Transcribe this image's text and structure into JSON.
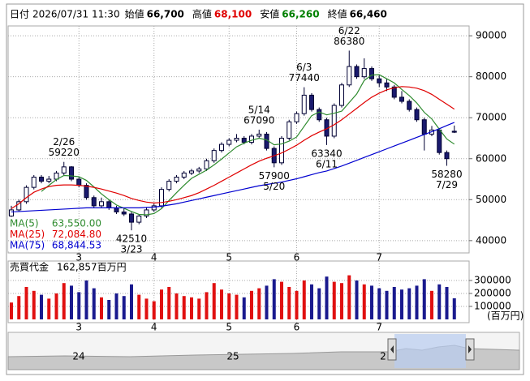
{
  "header": {
    "date_label": "日付",
    "date": "2026/07/31 11:30",
    "fields": [
      {
        "name": "始値",
        "value": 66700,
        "label": "66,700",
        "color": "#000000"
      },
      {
        "name": "高値",
        "value": 68100,
        "label": "68,100",
        "color": "#e00000"
      },
      {
        "name": "安値",
        "value": 66260,
        "label": "66,260",
        "color": "#008000"
      },
      {
        "name": "終値",
        "value": 66460,
        "label": "66,460",
        "color": "#000000"
      }
    ]
  },
  "chart_data": [
    {
      "type": "candlestick",
      "categories": [
        null,
        null,
        null,
        null,
        null,
        null,
        null,
        null,
        null,
        "3",
        null,
        null,
        null,
        null,
        null,
        null,
        null,
        null,
        null,
        "4",
        null,
        null,
        null,
        null,
        null,
        null,
        null,
        null,
        null,
        "5",
        null,
        null,
        null,
        null,
        null,
        null,
        null,
        null,
        "6",
        null,
        null,
        null,
        null,
        null,
        null,
        null,
        null,
        null,
        null,
        "7",
        null,
        null,
        null,
        null,
        null,
        null,
        null,
        null,
        null,
        null
      ],
      "values": [
        [
          46000,
          48500,
          45800,
          47500
        ],
        [
          47500,
          50000,
          47000,
          49500
        ],
        [
          49500,
          53500,
          49000,
          53000
        ],
        [
          53000,
          56000,
          52500,
          55500
        ],
        [
          55500,
          56000,
          54000,
          54500
        ],
        [
          54500,
          55800,
          54000,
          55000
        ],
        [
          55000,
          57000,
          54500,
          56500
        ],
        [
          56500,
          59220,
          56000,
          58000
        ],
        [
          58000,
          58200,
          54500,
          55000
        ],
        [
          55000,
          55500,
          53000,
          53500
        ],
        [
          53500,
          54000,
          50000,
          50500
        ],
        [
          50500,
          51000,
          48000,
          48500
        ],
        [
          48500,
          50500,
          48000,
          49500
        ],
        [
          49500,
          50000,
          47500,
          48000
        ],
        [
          48000,
          48500,
          46500,
          47000
        ],
        [
          47000,
          48000,
          46000,
          46500
        ],
        [
          46500,
          47000,
          42510,
          44500
        ],
        [
          44500,
          46500,
          44000,
          46000
        ],
        [
          46000,
          48000,
          45500,
          47500
        ],
        [
          47500,
          49000,
          47000,
          48500
        ],
        [
          48500,
          53000,
          48000,
          52500
        ],
        [
          52500,
          55000,
          52000,
          54500
        ],
        [
          54500,
          56000,
          54000,
          55500
        ],
        [
          55500,
          57000,
          55000,
          56500
        ],
        [
          56500,
          57500,
          56000,
          57000
        ],
        [
          57000,
          58000,
          56500,
          57500
        ],
        [
          57500,
          60000,
          57000,
          59500
        ],
        [
          59500,
          62500,
          59000,
          62000
        ],
        [
          62000,
          64000,
          61500,
          63500
        ],
        [
          63500,
          65000,
          63000,
          64500
        ],
        [
          64500,
          66000,
          64000,
          65000
        ],
        [
          65000,
          65500,
          63500,
          64000
        ],
        [
          64000,
          66000,
          63500,
          65500
        ],
        [
          65500,
          67090,
          65000,
          66000
        ],
        [
          66000,
          66500,
          62000,
          62500
        ],
        [
          62500,
          63000,
          57900,
          59000
        ],
        [
          59000,
          65500,
          58500,
          65000
        ],
        [
          65000,
          69500,
          64500,
          69000
        ],
        [
          69000,
          71500,
          68500,
          71000
        ],
        [
          71000,
          77440,
          70500,
          75500
        ],
        [
          75500,
          76000,
          71500,
          72000
        ],
        [
          72000,
          72500,
          69000,
          69500
        ],
        [
          69500,
          70000,
          63340,
          65500
        ],
        [
          65500,
          73500,
          65000,
          73000
        ],
        [
          73000,
          78500,
          72500,
          78000
        ],
        [
          78000,
          86380,
          77500,
          82500
        ],
        [
          82500,
          83000,
          79500,
          80000
        ],
        [
          80000,
          84500,
          79500,
          82000
        ],
        [
          82000,
          82500,
          79000,
          79500
        ],
        [
          79500,
          80500,
          77500,
          78500
        ],
        [
          78500,
          79500,
          76500,
          77500
        ],
        [
          77500,
          78000,
          74500,
          75000
        ],
        [
          75000,
          76500,
          73500,
          74000
        ],
        [
          74000,
          74500,
          71500,
          72000
        ],
        [
          72000,
          72500,
          69000,
          69500
        ],
        [
          69500,
          70000,
          62000,
          66000
        ],
        [
          66000,
          68000,
          65500,
          67000
        ],
        [
          67000,
          67500,
          61000,
          61500
        ],
        [
          61500,
          62000,
          58280,
          60000
        ],
        [
          66700,
          68100,
          66260,
          66460
        ]
      ],
      "up_color": "#ffffff",
      "down_color": "#1a1a6e",
      "edge_color": "#000033",
      "series": [
        {
          "name": "MA(5)",
          "color": "#2e8b2e",
          "last_value": 63550.0,
          "last_label": "63,550.00",
          "values": [
            null,
            null,
            null,
            null,
            52000,
            53500,
            54900,
            55900,
            55800,
            55600,
            54700,
            53100,
            51400,
            50000,
            48700,
            47900,
            47100,
            46400,
            46300,
            46600,
            47800,
            49800,
            51700,
            53500,
            55200,
            56200,
            57200,
            58500,
            59900,
            61400,
            62900,
            63800,
            64500,
            65000,
            64600,
            63400,
            63600,
            64300,
            65300,
            67900,
            70500,
            71400,
            70700,
            71100,
            71600,
            73700,
            75800,
            79100,
            80400,
            80500,
            79500,
            78500,
            76900,
            75400,
            73600,
            71300,
            69700,
            67200,
            64800,
            63550
          ]
        },
        {
          "name": "MA(25)",
          "color": "#e00000",
          "last_value": 72084.8,
          "last_label": "72,084.80",
          "values": [
            47800,
            49000,
            50500,
            51800,
            52600,
            53200,
            53500,
            53600,
            53600,
            53500,
            53300,
            53000,
            52600,
            52100,
            51600,
            51000,
            50300,
            49800,
            49400,
            49200,
            49300,
            49600,
            50000,
            50500,
            51000,
            51700,
            52600,
            53500,
            54500,
            55500,
            56500,
            57500,
            58500,
            59400,
            60100,
            60700,
            61400,
            62300,
            63300,
            64500,
            65600,
            66500,
            67300,
            68300,
            69500,
            70900,
            72300,
            73700,
            75000,
            76000,
            76800,
            77300,
            77600,
            77500,
            77200,
            76600,
            75700,
            74500,
            73300,
            72084.8
          ]
        },
        {
          "name": "MA(75)",
          "color": "#0000d0",
          "last_value": 68844.53,
          "last_label": "68,844.53",
          "values": [
            47000,
            47100,
            47200,
            47300,
            47400,
            47500,
            47600,
            47700,
            47800,
            47900,
            48000,
            48000,
            48000,
            48000,
            48000,
            48000,
            48000,
            48000,
            48100,
            48200,
            48400,
            48700,
            49000,
            49400,
            49800,
            50200,
            50600,
            51000,
            51400,
            51800,
            52200,
            52600,
            53000,
            53400,
            53700,
            54000,
            54300,
            54700,
            55100,
            55600,
            56100,
            56600,
            57000,
            57600,
            58200,
            58900,
            59600,
            60300,
            61000,
            61700,
            62400,
            63100,
            63800,
            64500,
            65200,
            65900,
            66600,
            67300,
            68100,
            68844.53
          ]
        }
      ],
      "annotations": [
        {
          "date": "2/26",
          "price": 59220
        },
        {
          "date": "3/23",
          "price": 42510
        },
        {
          "date": "5/14",
          "price": 67090
        },
        {
          "date": "5/20",
          "price": 57900
        },
        {
          "date": "6/3",
          "price": 77440
        },
        {
          "date": "6/11",
          "price": 63340
        },
        {
          "date": "6/22",
          "price": 86380
        },
        {
          "date": "7/29",
          "price": 58280
        }
      ],
      "ylim": [
        37000,
        92400
      ],
      "yticks": [
        40000,
        50000,
        60000,
        70000,
        80000,
        90000
      ],
      "grid": true
    },
    {
      "type": "bar",
      "title": "売買代金",
      "latest": {
        "value": 162857,
        "label": "162,857百万円"
      },
      "unit": "(百万円)",
      "up_color": "#e01010",
      "down_color": "#1a1a8e",
      "values": [
        130000,
        180000,
        250000,
        220000,
        190000,
        160000,
        200000,
        280000,
        260000,
        210000,
        300000,
        240000,
        170000,
        150000,
        200000,
        180000,
        270000,
        190000,
        160000,
        140000,
        230000,
        250000,
        200000,
        180000,
        170000,
        160000,
        210000,
        280000,
        230000,
        200000,
        190000,
        170000,
        220000,
        240000,
        260000,
        310000,
        290000,
        250000,
        220000,
        300000,
        270000,
        240000,
        330000,
        290000,
        280000,
        340000,
        300000,
        270000,
        260000,
        240000,
        220000,
        250000,
        230000,
        240000,
        260000,
        310000,
        220000,
        270000,
        250000,
        162857
      ],
      "ylim": [
        0,
        450000
      ],
      "yticks": [
        100000,
        200000,
        300000
      ],
      "grid": true
    }
  ],
  "navigator": {
    "labels": [
      "24",
      "25",
      "2"
    ]
  }
}
